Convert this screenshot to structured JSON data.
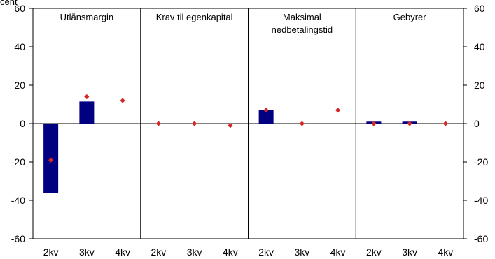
{
  "chart_data": {
    "type": "bar",
    "ylim": [
      -60,
      60
    ],
    "yticks": [
      -60,
      -40,
      -20,
      0,
      20,
      40,
      60
    ],
    "ytick_labels": [
      "-60",
      "-40",
      "-20",
      "0",
      "20",
      "40",
      "60"
    ],
    "top_label_fragment": "cent",
    "grid": false,
    "panels": [
      {
        "title_lines": [
          "Utlånsmargin"
        ],
        "categories": [
          "2kv",
          "3kv",
          "4kv"
        ],
        "bars": [
          -36,
          11.5,
          null
        ],
        "points": [
          -19,
          14,
          12
        ]
      },
      {
        "title_lines": [
          "Krav til egenkapital"
        ],
        "categories": [
          "2kv",
          "3kv",
          "4kv"
        ],
        "bars": [
          null,
          null,
          null
        ],
        "points": [
          0,
          0,
          -1
        ]
      },
      {
        "title_lines": [
          "Maksimal",
          "nedbetalingstid"
        ],
        "categories": [
          "2kv",
          "3kv",
          "4kv"
        ],
        "bars": [
          7,
          null,
          null
        ],
        "points": [
          7,
          0,
          7
        ]
      },
      {
        "title_lines": [
          "Gebyrer"
        ],
        "categories": [
          "2kv",
          "3kv",
          "4kv"
        ],
        "bars": [
          1,
          1,
          null
        ],
        "points": [
          0,
          0,
          0
        ]
      }
    ],
    "colors": {
      "bar": "#000080",
      "point": "#d62728",
      "axis": "#000000"
    }
  }
}
